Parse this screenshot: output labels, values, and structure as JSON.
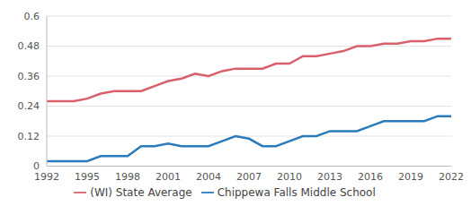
{
  "chart_data": {
    "type": "line",
    "x": [
      1992,
      1993,
      1994,
      1995,
      1996,
      1997,
      1998,
      1999,
      2000,
      2001,
      2002,
      2003,
      2004,
      2005,
      2006,
      2007,
      2008,
      2009,
      2010,
      2011,
      2012,
      2013,
      2014,
      2015,
      2016,
      2017,
      2018,
      2019,
      2020,
      2021,
      2022
    ],
    "series": [
      {
        "name": "Chippewa Falls Middle School",
        "color": "#2b7bba",
        "values": [
          0.02,
          0.02,
          0.02,
          0.02,
          0.04,
          0.04,
          0.04,
          0.08,
          0.08,
          0.09,
          0.08,
          0.08,
          0.08,
          0.1,
          0.12,
          0.11,
          0.08,
          0.08,
          0.1,
          0.12,
          0.12,
          0.14,
          0.14,
          0.14,
          0.16,
          0.18,
          0.18,
          0.18,
          0.18,
          0.2,
          0.2
        ]
      },
      {
        "name": "(WI) State Average",
        "color": "#d9606b",
        "values": [
          0.26,
          0.26,
          0.26,
          0.27,
          0.29,
          0.3,
          0.3,
          0.3,
          0.32,
          0.34,
          0.35,
          0.37,
          0.36,
          0.38,
          0.39,
          0.39,
          0.39,
          0.41,
          0.41,
          0.44,
          0.44,
          0.45,
          0.46,
          0.48,
          0.48,
          0.49,
          0.49,
          0.5,
          0.5,
          0.51,
          0.51
        ]
      }
    ],
    "xlim": [
      1992,
      2022
    ],
    "xticks": [
      1992,
      1995,
      1998,
      2001,
      2004,
      2007,
      2010,
      2013,
      2016,
      2019,
      2022
    ],
    "ylim": [
      0,
      0.6
    ],
    "yticks": [
      0,
      0.12,
      0.24,
      0.36,
      0.48,
      0.6
    ],
    "grid": true,
    "legend": "bottom"
  }
}
